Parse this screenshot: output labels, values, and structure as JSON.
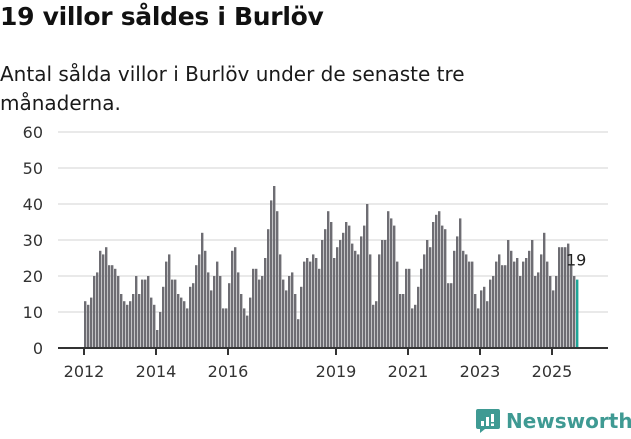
{
  "header": {
    "title": "19 villor såldes i Burlöv",
    "subtitle": "Antal sålda villor i Burlöv under de senaste tre månaderna."
  },
  "branding": {
    "logo_text": "Newsworthy",
    "logo_icon": "bar-chart-speech-bubble-icon",
    "color": "#3f9a93"
  },
  "colors": {
    "bar": "#6e6d73",
    "highlight": "#1fa597",
    "grid": "#e2e2e2",
    "axis": "#333333"
  },
  "chart_data": {
    "type": "bar",
    "title": "19 villor såldes i Burlöv",
    "subtitle": "Antal sålda villor i Burlöv under de senaste tre månaderna.",
    "xlabel": "",
    "ylabel": "",
    "ylim": [
      0,
      60
    ],
    "yticks": [
      0,
      10,
      20,
      30,
      40,
      50,
      60
    ],
    "xticks": [
      "2012",
      "2014",
      "2016",
      "2019",
      "2021",
      "2023",
      "2025"
    ],
    "grid": true,
    "start": "2012-01",
    "frequency": "monthly",
    "values": [
      13,
      12,
      14,
      20,
      21,
      27,
      26,
      28,
      23,
      23,
      22,
      20,
      15,
      13,
      12,
      13,
      15,
      20,
      15,
      19,
      19,
      20,
      14,
      12,
      5,
      10,
      17,
      24,
      26,
      19,
      19,
      15,
      14,
      13,
      11,
      17,
      18,
      23,
      26,
      32,
      27,
      21,
      16,
      20,
      24,
      20,
      11,
      11,
      18,
      27,
      28,
      21,
      15,
      11,
      9,
      14,
      22,
      22,
      19,
      20,
      25,
      33,
      41,
      45,
      38,
      26,
      19,
      16,
      20,
      21,
      15,
      8,
      17,
      24,
      25,
      24,
      26,
      25,
      22,
      30,
      33,
      38,
      35,
      25,
      28,
      30,
      32,
      35,
      34,
      29,
      27,
      26,
      31,
      34,
      40,
      26,
      12,
      13,
      26,
      30,
      30,
      38,
      36,
      34,
      24,
      15,
      15,
      22,
      22,
      11,
      12,
      17,
      22,
      26,
      30,
      28,
      35,
      37,
      38,
      34,
      33,
      18,
      18,
      27,
      31,
      36,
      27,
      26,
      24,
      24,
      15,
      11,
      16,
      17,
      13,
      19,
      20,
      24,
      26,
      23,
      23,
      30,
      27,
      24,
      25,
      20,
      24,
      25,
      27,
      30,
      20,
      21,
      26,
      32,
      24,
      20,
      16,
      20,
      28,
      28,
      28,
      29,
      23,
      20,
      19
    ],
    "highlight_last": true,
    "annotation": {
      "label": "19",
      "target": "last"
    }
  }
}
